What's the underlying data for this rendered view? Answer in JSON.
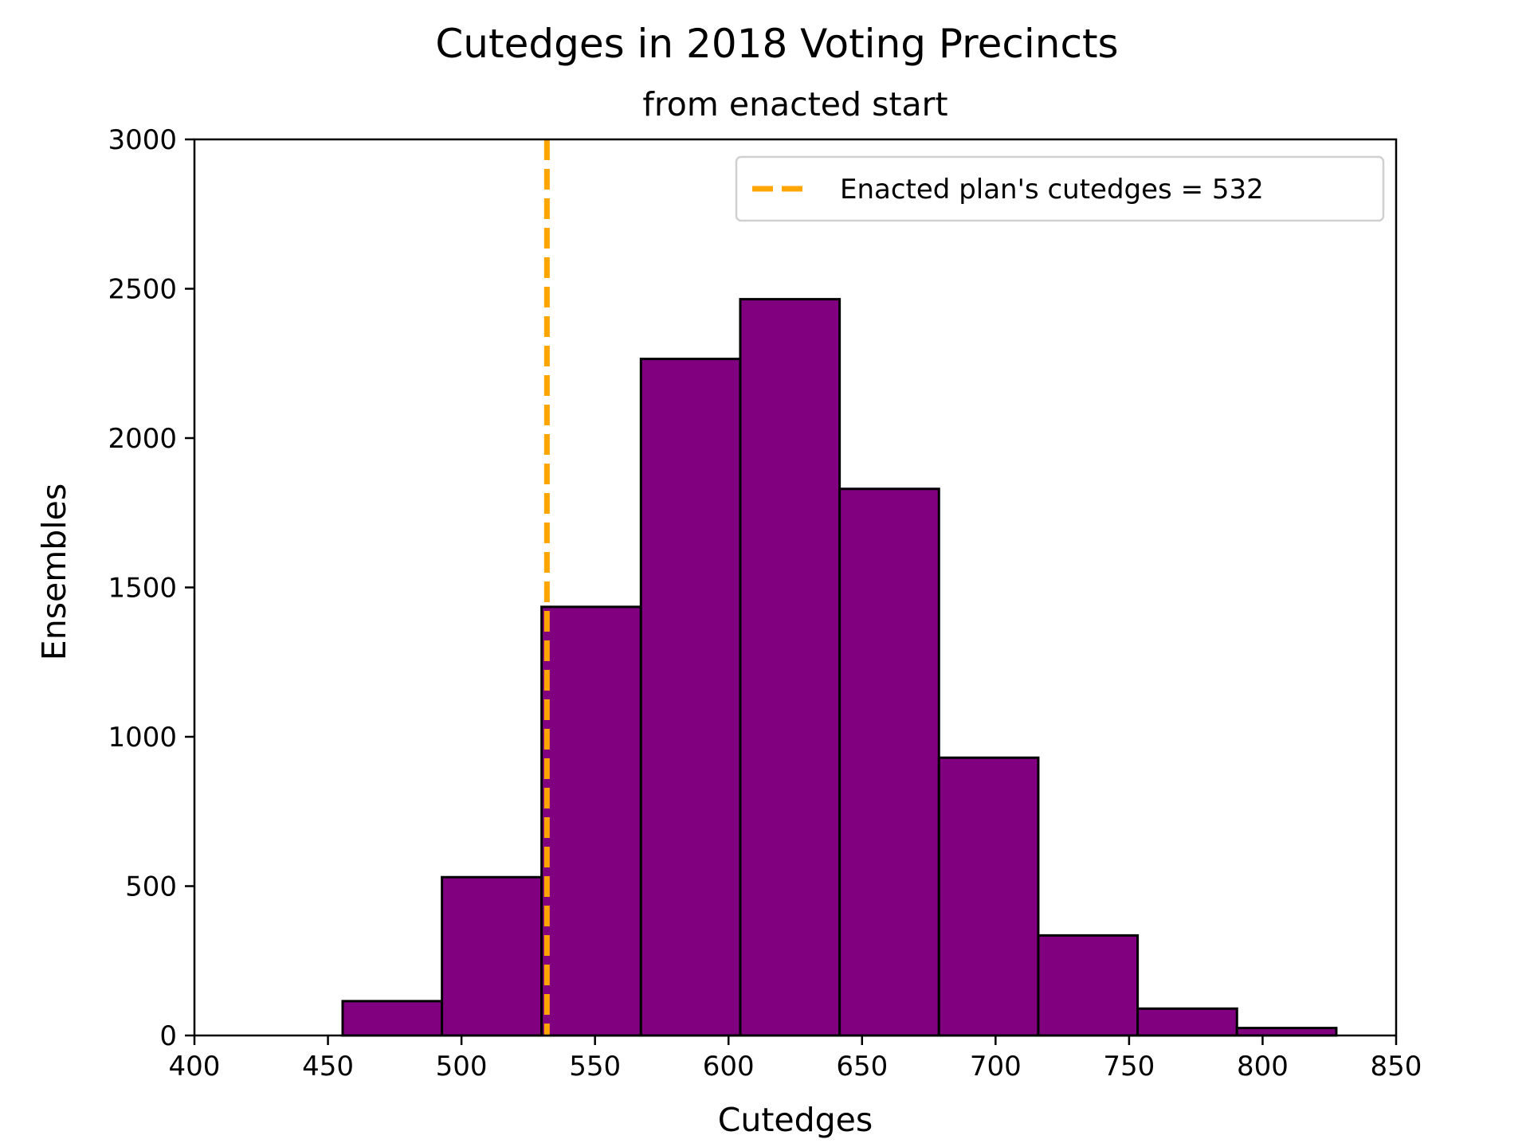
{
  "chart_data": {
    "type": "bar",
    "title": "Cutedges in 2018 Voting Precincts",
    "subtitle": "from enacted start",
    "xlabel": "Cutedges",
    "ylabel": "Ensembles",
    "xlim": [
      400,
      850
    ],
    "ylim": [
      0,
      3000
    ],
    "xticks": [
      400,
      450,
      500,
      550,
      600,
      650,
      700,
      750,
      800,
      850
    ],
    "yticks": [
      0,
      500,
      1000,
      1500,
      2000,
      2500,
      3000
    ],
    "grid": false,
    "bins": [
      {
        "x0": 455.5,
        "x1": 492.7,
        "value": 115
      },
      {
        "x0": 492.7,
        "x1": 530.0,
        "value": 530
      },
      {
        "x0": 530.0,
        "x1": 567.2,
        "value": 1435
      },
      {
        "x0": 567.2,
        "x1": 604.4,
        "value": 2265
      },
      {
        "x0": 604.4,
        "x1": 641.6,
        "value": 2465
      },
      {
        "x0": 641.6,
        "x1": 678.8,
        "value": 1830
      },
      {
        "x0": 678.8,
        "x1": 716.0,
        "value": 930
      },
      {
        "x0": 716.0,
        "x1": 753.2,
        "value": 335
      },
      {
        "x0": 753.2,
        "x1": 790.4,
        "value": 90
      },
      {
        "x0": 790.4,
        "x1": 827.6,
        "value": 25
      }
    ],
    "bar_color": "#800080",
    "bar_edge_color": "#000000",
    "reference_line": {
      "x": 532,
      "label": "Enacted plan's cutedges = 532",
      "color": "#FFA500",
      "style": "dashed"
    },
    "legend": {
      "position": "top-right",
      "entries": [
        "Enacted plan's cutedges = 532"
      ]
    }
  }
}
